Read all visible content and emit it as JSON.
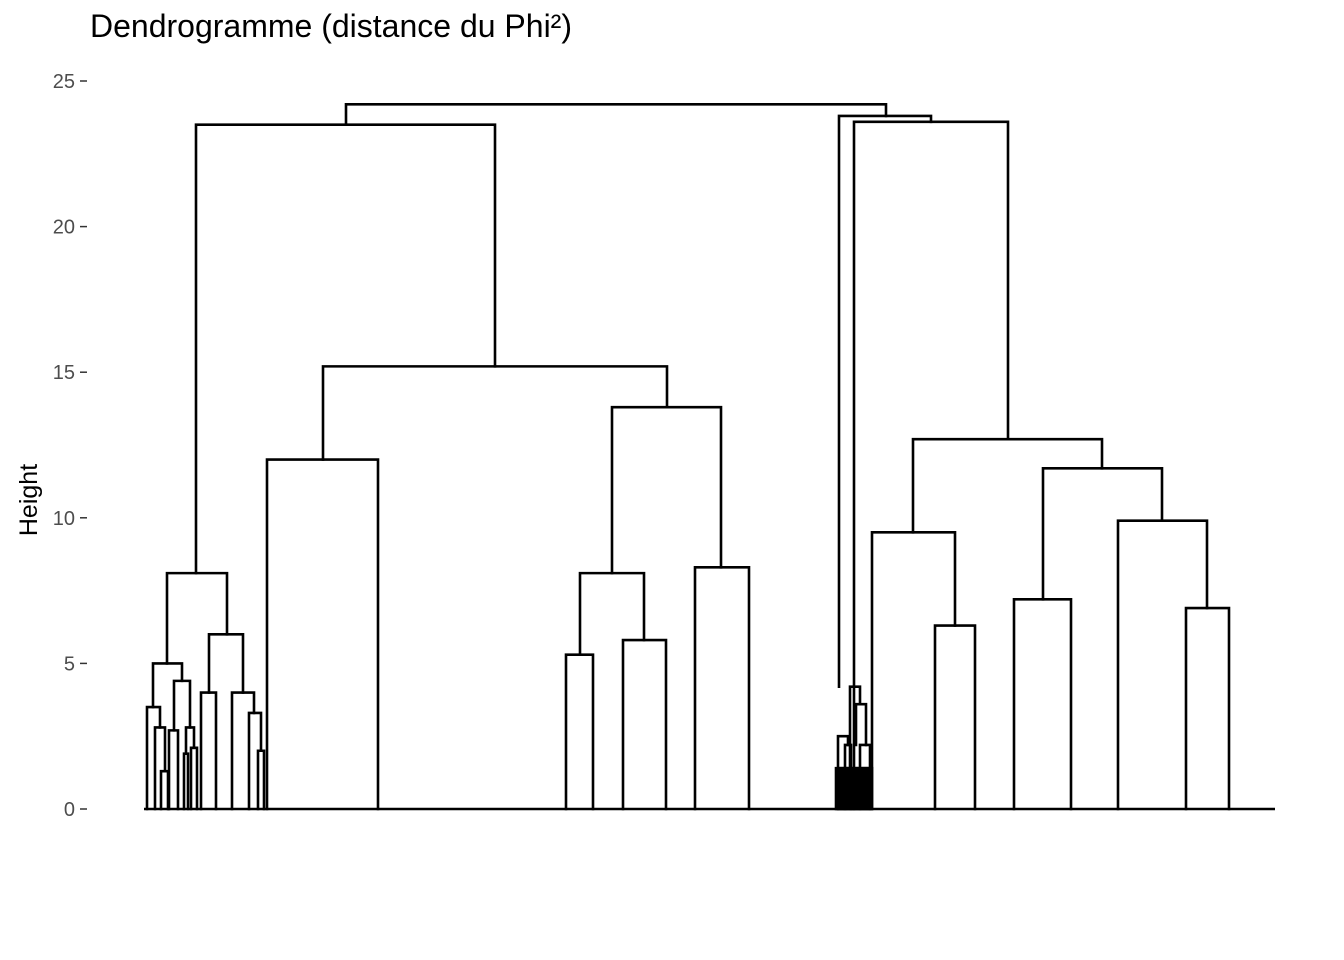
{
  "chart_data": {
    "type": "dendrogram",
    "title": "Dendrogramme (distance du Phi²)",
    "ylabel": "Height",
    "xlabel": "",
    "ylim": [
      0,
      25
    ],
    "yticks": [
      0,
      5,
      10,
      15,
      20,
      25
    ],
    "grid": false,
    "legend": "none",
    "line_color": "#000000",
    "merges": [
      {
        "x": [
          1,
          24
        ],
        "height": 24.2
      },
      {
        "x": [
          1,
          17
        ],
        "height": 23.5
      },
      {
        "x": [
          19,
          21
        ],
        "height": 23.8
      },
      {
        "x": [
          19,
          20
        ],
        "height": 23.6
      },
      {
        "x": [
          20,
          21
        ],
        "height": 23.6
      },
      {
        "x": [
          22,
          27
        ],
        "height": 12.7
      },
      {
        "x": [
          25,
          29
        ],
        "height": 11.7
      },
      {
        "x": [
          28,
          30
        ],
        "height": 9.9
      },
      {
        "x": [
          22,
          24
        ],
        "height": 9.5
      },
      {
        "x": [
          24,
          25
        ],
        "height": 6.3
      },
      {
        "x": [
          26,
          27
        ],
        "height": 7.2
      },
      {
        "x": [
          29,
          30
        ],
        "height": 6.9
      },
      {
        "x": [
          8,
          14
        ],
        "height": 15.2
      },
      {
        "x": [
          15,
          16
        ],
        "height": 13.8
      },
      {
        "x": [
          13,
          14
        ],
        "height": 8.1
      },
      {
        "x": [
          13,
          14
        ],
        "height": 5.3
      },
      {
        "x": [
          14,
          15
        ],
        "height": 5.8
      },
      {
        "x": [
          16,
          17
        ],
        "height": 8.3
      },
      {
        "x": [
          7,
          9
        ],
        "height": 12.0
      },
      {
        "x": [
          2,
          5
        ],
        "height": 8.1
      },
      {
        "x": [
          4,
          6
        ],
        "height": 6.0
      },
      {
        "x": [
          2,
          3
        ],
        "height": 5.0
      },
      {
        "x": [
          3,
          4
        ],
        "height": 4.4
      },
      {
        "x": [
          4,
          5
        ],
        "height": 4.0
      },
      {
        "x": [
          5,
          6
        ],
        "height": 4.0
      },
      {
        "x": [
          6,
          6
        ],
        "height": 3.3
      },
      {
        "x": [
          1,
          2
        ],
        "height": 3.5
      },
      {
        "x": [
          2,
          3
        ],
        "height": 2.8
      },
      {
        "x": [
          3,
          3
        ],
        "height": 2.7
      },
      {
        "x": [
          3,
          4
        ],
        "height": 2.8
      },
      {
        "x": [
          4,
          4
        ],
        "height": 2.1
      },
      {
        "x": [
          6,
          6
        ],
        "height": 2.0
      },
      {
        "x": [
          2,
          2
        ],
        "height": 1.3
      },
      {
        "x": [
          4,
          4
        ],
        "height": 1.9
      },
      {
        "x": [
          19,
          20
        ],
        "height": 4.2
      },
      {
        "x": [
          20,
          20
        ],
        "height": 3.6
      },
      {
        "x": [
          19,
          19
        ],
        "height": 2.5
      },
      {
        "x": [
          20,
          20
        ],
        "height": 2.2
      },
      {
        "x": [
          19,
          20
        ],
        "height": 1.4
      }
    ]
  }
}
